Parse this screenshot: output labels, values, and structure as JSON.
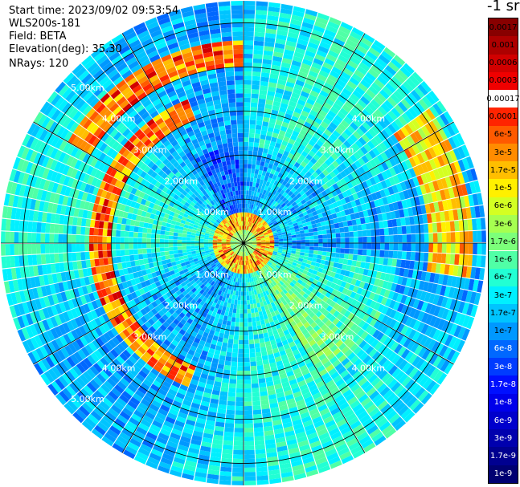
{
  "header": {
    "start_time": "Start time: 2023/09/02 09:53:54",
    "instrument": "WLS200s-181",
    "field": "Field: BETA",
    "elevation": "Elevation(deg): 35.30",
    "nrays": "NRays: 120"
  },
  "colorbar": {
    "title": "-1 sr",
    "labels": [
      "0.0017",
      "0.001",
      "0.0006",
      "0.0003",
      "0.00017",
      "0.0001",
      "6e-5",
      "3e-5",
      "1.7e-5",
      "1e-5",
      "6e-6",
      "3e-6",
      "1.7e-6",
      "1e-6",
      "6e-7",
      "3e-7",
      "1.7e-7",
      "1e-7",
      "6e-8",
      "3e-8",
      "1.7e-8",
      "1e-8",
      "6e-9",
      "3e-9",
      "1.7e-9",
      "1e-9"
    ],
    "colors": [
      "#880000",
      "#ad0000",
      "#d10000",
      "#f00000",
      "#ffffff",
      "#ff2400",
      "#ff5a00",
      "#ff8c00",
      "#ffbe00",
      "#fff000",
      "#d4ff22",
      "#a6ff50",
      "#7cff7a",
      "#50ffa6",
      "#22ffd4",
      "#00f0ff",
      "#00c4ff",
      "#0098ff",
      "#0068ff",
      "#003cff",
      "#0010ff",
      "#0000ea",
      "#0000cc",
      "#0000ae",
      "#000090",
      "#000072"
    ],
    "text_colors": [
      "#000000",
      "#000000",
      "#000000",
      "#000000",
      "#000000",
      "#000000",
      "#000000",
      "#000000",
      "#000000",
      "#000000",
      "#000000",
      "#000000",
      "#000000",
      "#000000",
      "#000000",
      "#000000",
      "#000000",
      "#000000",
      "#ffffff",
      "#ffffff",
      "#ffffff",
      "#ffffff",
      "#ffffff",
      "#ffffff",
      "#ffffff",
      "#ffffff"
    ]
  },
  "chart_data": {
    "type": "heatmap",
    "projection": "polar PPI",
    "title": "",
    "n_rays": 120,
    "max_range_km": 5.5,
    "range_ring_labels": [
      "1.00km",
      "2.00km",
      "3.00km",
      "4.00km",
      "5.00km"
    ],
    "range_rings_km": [
      1,
      2,
      3,
      4,
      5
    ],
    "colormap": "jet (log scale)",
    "value_range": [
      1e-09,
      0.0017
    ],
    "features": [
      {
        "name": "near-field ring",
        "range_km": [
          0.25,
          0.7
        ],
        "level": "high (1e-5 to 1e-4)"
      },
      {
        "name": "western arc",
        "range_km": [
          3.0,
          3.5
        ],
        "azimuth_deg": [
          200,
          340
        ],
        "level": "high (1e-5 to 1e-4)"
      },
      {
        "name": "north-west arc",
        "range_km": [
          4.0,
          4.6
        ],
        "azimuth_deg": [
          300,
          360
        ],
        "level": "high (3e-5 to 1e-4)"
      },
      {
        "name": "eastern arc",
        "range_km": [
          4.2,
          5.2
        ],
        "azimuth_deg": [
          55,
          100
        ],
        "level": "moderate (6e-6 to 3e-5)"
      }
    ]
  }
}
